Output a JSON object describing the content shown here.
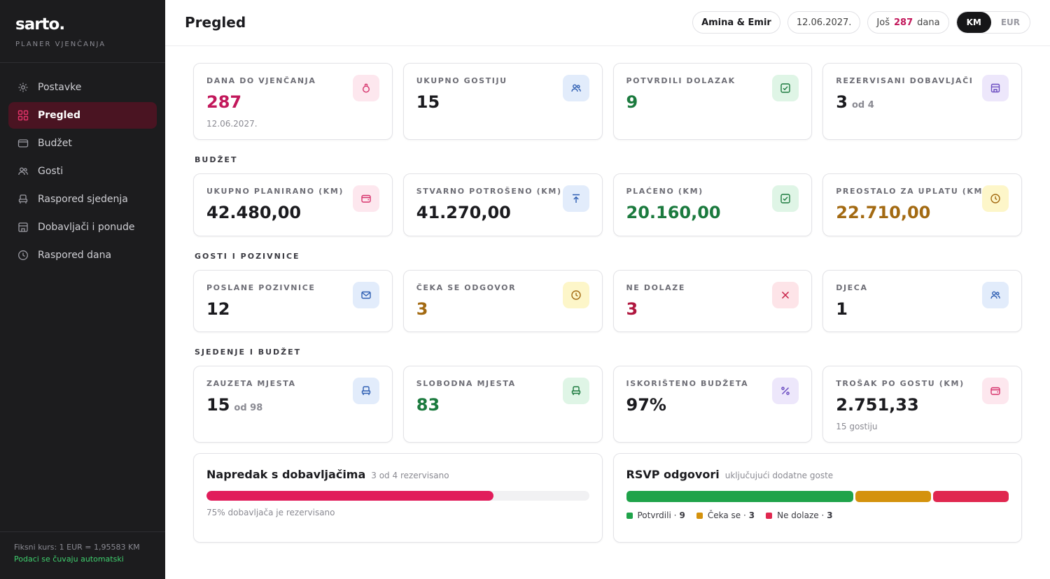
{
  "brand": {
    "logo": "sarto.",
    "tagline": "PLANER VJENČANJA"
  },
  "sidebar": {
    "items": [
      {
        "label": "Postavke",
        "icon": "gear-icon"
      },
      {
        "label": "Pregled",
        "icon": "grid-icon",
        "active": true
      },
      {
        "label": "Budžet",
        "icon": "wallet-icon"
      },
      {
        "label": "Gosti",
        "icon": "users-icon"
      },
      {
        "label": "Raspored sjedenja",
        "icon": "seat-icon"
      },
      {
        "label": "Dobavljači i ponude",
        "icon": "store-icon"
      },
      {
        "label": "Raspored dana",
        "icon": "clock-icon"
      }
    ],
    "footer_rate": "Fiksni kurs: 1 EUR = 1,95583 KM",
    "footer_saved": "Podaci se čuvaju automatski"
  },
  "header": {
    "title": "Pregled",
    "couple": "Amina & Emir",
    "date": "12.06.2027.",
    "countdown_prefix": "Još",
    "countdown_days": "287",
    "countdown_suffix": "dana",
    "currency_options": [
      "KM",
      "EUR"
    ],
    "currency_selected": "KM"
  },
  "overview": {
    "days": {
      "label": "DANA DO VJENČANJA",
      "value": "287",
      "sub": "12.06.2027."
    },
    "guests": {
      "label": "UKUPNO GOSTIJU",
      "value": "15"
    },
    "confirmed": {
      "label": "POTVRDILI DOLAZAK",
      "value": "9"
    },
    "vendors": {
      "label": "REZERVISANI DOBAVLJAČI",
      "value": "3",
      "of": "od 4"
    }
  },
  "budget": {
    "section": "BUDŽET",
    "planned": {
      "label": "UKUPNO PLANIRANO (KM)",
      "value": "42.480,00"
    },
    "spent": {
      "label": "STVARNO POTROŠENO (KM)",
      "value": "41.270,00"
    },
    "paid": {
      "label": "PLAĆENO (KM)",
      "value": "20.160,00"
    },
    "remaining": {
      "label": "PREOSTALO ZA UPLATU (KM)",
      "value": "22.710,00"
    }
  },
  "guests": {
    "section": "GOSTI I POZIVNICE",
    "sent": {
      "label": "POSLANE POZIVNICE",
      "value": "12"
    },
    "waiting": {
      "label": "ČEKA SE ODGOVOR",
      "value": "3"
    },
    "declined": {
      "label": "NE DOLAZE",
      "value": "3"
    },
    "children": {
      "label": "DJECA",
      "value": "1"
    }
  },
  "seating": {
    "section": "SJEDENJE I BUDŽET",
    "taken": {
      "label": "ZAUZETA MJESTA",
      "value": "15",
      "of": "od 98"
    },
    "free": {
      "label": "SLOBODNA MJESTA",
      "value": "83"
    },
    "used_budget": {
      "label": "ISKORIŠTENO BUDŽETA",
      "value": "97%"
    },
    "per_guest": {
      "label": "TROŠAK PO GOSTU (KM)",
      "value": "2.751,33",
      "sub": "15 gostiju"
    }
  },
  "vendor_progress": {
    "title": "Napredak s dobavljačima",
    "subtitle": "3 od 4 rezervisano",
    "fraction": 0.75,
    "note": "75% dobavljača je rezervisano"
  },
  "rsvp": {
    "title": "RSVP odgovori",
    "subtitle": "uključujući dodatne goste",
    "segments": [
      {
        "label": "Potvrdili",
        "count": 9,
        "count_text": "9",
        "color": "#1fa34a"
      },
      {
        "label": "Čeka se",
        "count": 3,
        "count_text": "3",
        "color": "#d4920d"
      },
      {
        "label": "Ne dolaze",
        "count": 3,
        "count_text": "3",
        "color": "#e0274f"
      }
    ]
  },
  "colors": {
    "accent": "#c2185b",
    "sidebar": "#1c1c1e",
    "active_nav": "#4a1422"
  }
}
